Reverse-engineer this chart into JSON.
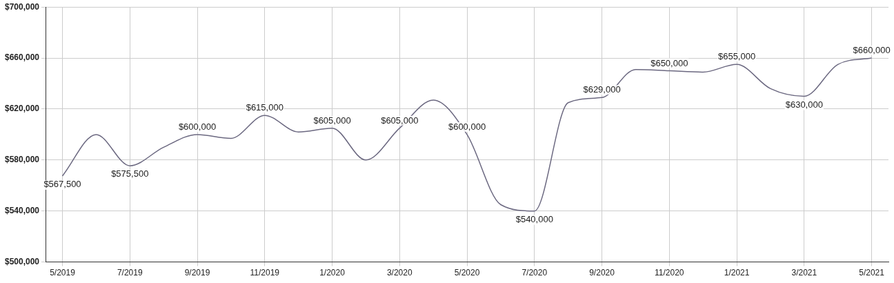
{
  "chart_data": {
    "type": "line",
    "categories": [
      "5/2019",
      null,
      "7/2019",
      null,
      "9/2019",
      null,
      "11/2019",
      null,
      "1/2020",
      null,
      "3/2020",
      null,
      "5/2020",
      null,
      "7/2020",
      null,
      "9/2020",
      null,
      "11/2020",
      null,
      "1/2021",
      null,
      "3/2021",
      null,
      "5/2021"
    ],
    "series": [
      {
        "color": "#6b6880",
        "values": [
          567500,
          600000,
          575500,
          590000,
          600000,
          597000,
          615000,
          602000,
          605000,
          580000,
          605000,
          627000,
          600000,
          545000,
          540000,
          625000,
          629000,
          651000,
          650000,
          649000,
          655000,
          636000,
          630000,
          655000,
          660000
        ],
        "value_labels": [
          "$567,500",
          null,
          "$575,500",
          null,
          "$600,000",
          null,
          "$615,000",
          null,
          "$605,000",
          null,
          "$605,000",
          null,
          "$600,000",
          null,
          "$540,000",
          null,
          "$629,000",
          null,
          "$650,000",
          null,
          "$655,000",
          null,
          "$630,000",
          null,
          "$660,000"
        ]
      }
    ],
    "ylim": [
      500000,
      700000
    ],
    "yticks": [
      {
        "value": 500000,
        "label": "$500,000"
      },
      {
        "value": 540000,
        "label": "$540,000"
      },
      {
        "value": 580000,
        "label": "$580,000"
      },
      {
        "value": 620000,
        "label": "$620,000"
      },
      {
        "value": 660000,
        "label": "$660,000"
      },
      {
        "value": 700000,
        "label": "$700,000"
      }
    ],
    "grid": true,
    "legend": false,
    "marker": "none",
    "line_style": "solid"
  }
}
